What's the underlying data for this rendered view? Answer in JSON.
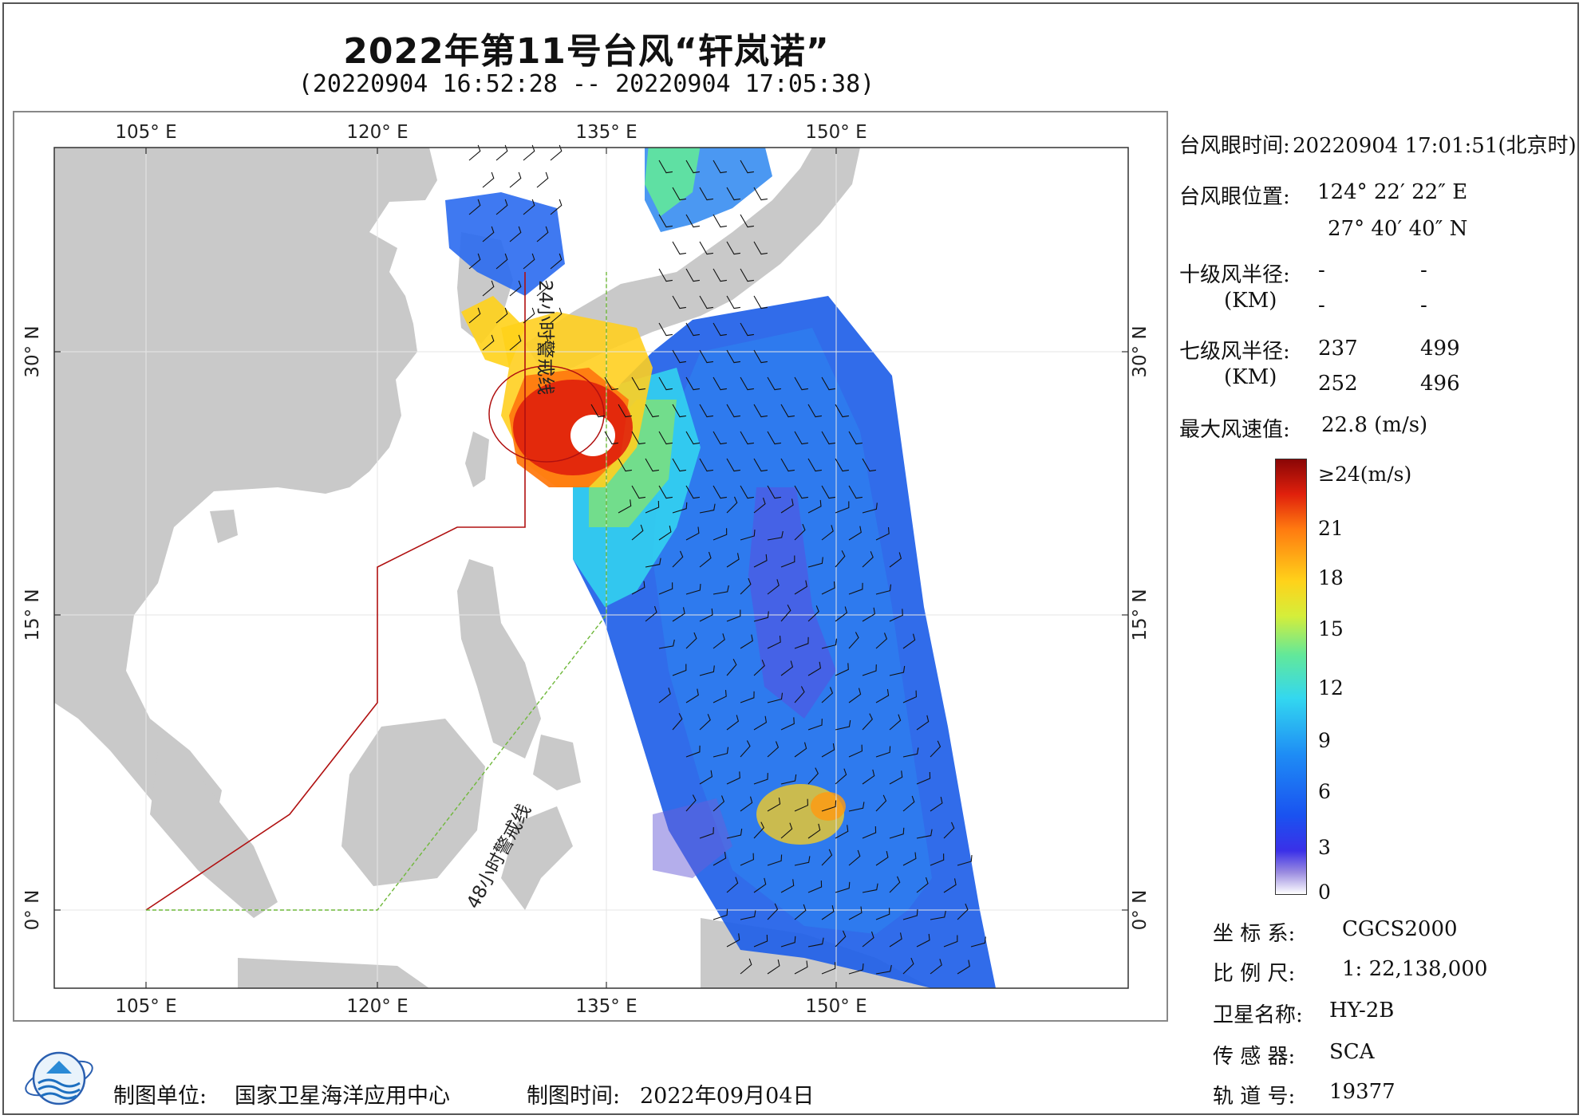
{
  "header": {
    "title": "2022年第11号台风“轩岚诺”",
    "subtitle": "(20220904 16:52:28 -- 20220904 17:05:38)"
  },
  "map": {
    "lon_ticks": [
      "105° E",
      "120° E",
      "135° E",
      "150° E"
    ],
    "lat_ticks": [
      "30° N",
      "15° N",
      "0° N"
    ],
    "line_label_24h": "24小时警戒线",
    "line_label_48h": "48小时警戒线",
    "colors": {
      "land": "#c9c9c9",
      "ocean": "#ffffff",
      "warning_24h": "#b01010",
      "warning_48h": "#6fb83a"
    }
  },
  "info": {
    "eye_time_label": "台风眼时间:",
    "eye_time_value": "20220904 17:01:51(北京时)",
    "eye_pos_label": "台风眼位置:",
    "eye_lon": "124° 22′ 22″ E",
    "eye_lat": "27° 40′ 40″ N",
    "r10_label": "十级风半径:",
    "r10_unit": "(KM)",
    "r10_values": [
      "-",
      "-",
      "-",
      "-"
    ],
    "r7_label": "七级风半径:",
    "r7_unit": "(KM)",
    "r7_values": [
      "237",
      "499",
      "252",
      "496"
    ],
    "max_label": "最大风速值:",
    "max_value": "22.8  (m/s)"
  },
  "colorbar": {
    "labels": [
      "≥24(m/s)",
      "21",
      "18",
      "15",
      "12",
      "9",
      "6",
      "3",
      "0"
    ]
  },
  "meta": {
    "coord_label": "坐 标 系:",
    "coord_value": "CGCS2000",
    "scale_label": "比 例 尺:",
    "scale_value": "1: 22,138,000",
    "sat_label": "卫星名称:",
    "sat_value": "HY-2B",
    "sensor_label": "传 感 器:",
    "sensor_value": "SCA",
    "orbit_label": "轨 道 号:",
    "orbit_value": "19377"
  },
  "footer": {
    "unit_label": "制图单位:",
    "unit_value": "国家卫星海洋应用中心",
    "time_label": "制图时间:",
    "time_value": "2022年09月04日"
  }
}
